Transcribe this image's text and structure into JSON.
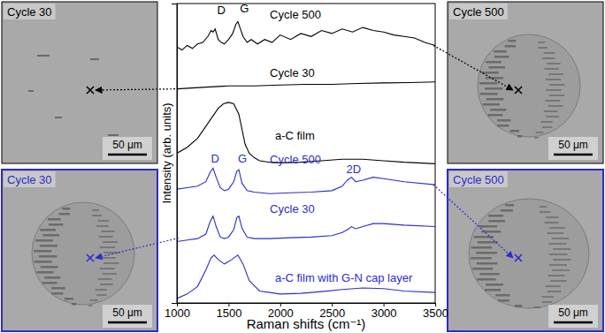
{
  "chart_data": {
    "type": "line",
    "x_label": "Raman shifts (cm⁻¹)",
    "y_label": "Intensity (arb. units)",
    "xlim": [
      1000,
      3500
    ],
    "xticks": [
      1000,
      1500,
      2000,
      2500,
      3000,
      3500
    ],
    "ylim": [
      0,
      100
    ],
    "tick_labels": "x",
    "series": [
      {
        "color": "#000000",
        "x": [
          1000,
          1050,
          1100,
          1150,
          1200,
          1250,
          1300,
          1330,
          1350,
          1370,
          1400,
          1430,
          1460,
          1500,
          1540,
          1570,
          1590,
          1610,
          1640,
          1680,
          1720,
          1780,
          1850,
          1920,
          2000,
          2100,
          2200,
          2300,
          2400,
          2500,
          2600,
          2700,
          2800,
          2900,
          3000,
          3100,
          3200,
          3300,
          3400,
          3500
        ],
        "values": [
          85.5,
          84.5,
          86,
          85,
          86.5,
          87,
          89,
          91,
          90.5,
          91.5,
          88,
          87,
          86.5,
          88,
          90,
          93,
          94,
          92,
          89,
          87,
          88,
          86.5,
          88,
          87,
          89.5,
          88,
          90,
          89,
          91,
          90,
          91.5,
          90.5,
          92,
          91,
          90.5,
          89.5,
          89,
          88.5,
          87,
          86
        ]
      },
      {
        "color": "#000000",
        "x": [
          1000,
          1250,
          1500,
          1750,
          2000,
          2250,
          2500,
          2750,
          3000,
          3250,
          3500
        ],
        "values": [
          71.5,
          72,
          72.5,
          72.5,
          72.8,
          73,
          73,
          73.3,
          73.5,
          73.6,
          73.8
        ]
      },
      {
        "color": "#000000",
        "x": [
          1000,
          1100,
          1200,
          1300,
          1400,
          1450,
          1500,
          1550,
          1600,
          1630,
          1660,
          1700,
          1750,
          1800,
          1900,
          2000,
          2200,
          2400,
          2600,
          2800,
          3000,
          3200,
          3500
        ],
        "values": [
          50,
          52,
          55,
          60,
          65,
          66.5,
          67,
          66.5,
          63,
          58,
          53,
          50,
          48.5,
          47.5,
          47,
          46.8,
          47,
          47.5,
          48,
          48,
          47.5,
          47,
          46.5
        ]
      },
      {
        "color": "#2b2bd0",
        "x": [
          1000,
          1100,
          1200,
          1280,
          1320,
          1350,
          1380,
          1420,
          1460,
          1500,
          1550,
          1580,
          1600,
          1630,
          1680,
          1750,
          1900,
          2100,
          2300,
          2500,
          2600,
          2650,
          2690,
          2730,
          2800,
          2900,
          3000,
          3200,
          3500
        ],
        "values": [
          38,
          38.5,
          39,
          40.5,
          43.5,
          45,
          42,
          38.5,
          37.5,
          38,
          40.5,
          44,
          44.5,
          40,
          37.5,
          37,
          36.5,
          36.8,
          37,
          37.5,
          39,
          41,
          42,
          40.5,
          41,
          42,
          41.5,
          40.5,
          39.5
        ]
      },
      {
        "color": "#2b2bd0",
        "x": [
          1000,
          1100,
          1200,
          1280,
          1320,
          1350,
          1380,
          1420,
          1460,
          1500,
          1550,
          1580,
          1600,
          1630,
          1680,
          1750,
          1900,
          2100,
          2300,
          2500,
          2600,
          2650,
          2690,
          2730,
          2800,
          2900,
          3000,
          3200,
          3500
        ],
        "values": [
          20.5,
          21,
          21.5,
          23,
          27,
          29,
          25.5,
          22,
          21.5,
          22,
          24.5,
          28.5,
          29,
          25,
          22,
          21.5,
          21.5,
          21.8,
          22,
          22.5,
          23.5,
          24.5,
          25.5,
          24.8,
          25.5,
          26.5,
          26.5,
          26,
          25.5
        ]
      },
      {
        "color": "#2b2bd0",
        "x": [
          1000,
          1100,
          1200,
          1280,
          1330,
          1360,
          1400,
          1460,
          1530,
          1590,
          1640,
          1700,
          1800,
          1900,
          2000,
          2200,
          2400,
          2600,
          2800,
          3000,
          3200,
          3500
        ],
        "values": [
          1.5,
          3,
          5.5,
          11,
          15,
          16,
          14.5,
          13,
          14.5,
          16,
          13,
          7.5,
          4,
          3.5,
          3,
          3.2,
          3.8,
          4.5,
          5,
          4.8,
          4,
          3.5
        ]
      }
    ],
    "annotations": [
      {
        "text": "D",
        "x": 1390,
        "y": 97.5,
        "color": "#000000"
      },
      {
        "text": "G",
        "x": 1610,
        "y": 98,
        "color": "#000000"
      },
      {
        "text": "Cycle 500",
        "x": 1900,
        "y": 96,
        "color": "#000000"
      },
      {
        "text": "Cycle 30",
        "x": 1900,
        "y": 76.5,
        "color": "#000000"
      },
      {
        "text": "a-C film",
        "x": 1950,
        "y": 55.5,
        "color": "#000000"
      },
      {
        "text": "D",
        "x": 1330,
        "y": 48,
        "color": "#2b2bd0"
      },
      {
        "text": "G",
        "x": 1590,
        "y": 48,
        "color": "#2b2bd0"
      },
      {
        "text": "2D",
        "x": 2640,
        "y": 44.5,
        "color": "#2b2bd0"
      },
      {
        "text": "Cycle 500",
        "x": 1900,
        "y": 47.5,
        "color": "#2b2bd0"
      },
      {
        "text": "Cycle 30",
        "x": 1900,
        "y": 31,
        "color": "#2b2bd0"
      },
      {
        "text": "a-C film with G-N cap layer",
        "x": 1950,
        "y": 8,
        "color": "#2b2bd0"
      }
    ]
  },
  "panels": [
    {
      "label": "Cycle 30",
      "scale_bar": "50 μm",
      "color": "#000000"
    },
    {
      "label": "Cycle 30",
      "scale_bar": "50 μm",
      "color": "#2b2bd0"
    },
    {
      "label": "Cycle 500",
      "scale_bar": "50 μm",
      "color": "#000000"
    },
    {
      "label": "Cycle 500",
      "scale_bar": "50 μm",
      "color": "#2b2bd0"
    }
  ]
}
